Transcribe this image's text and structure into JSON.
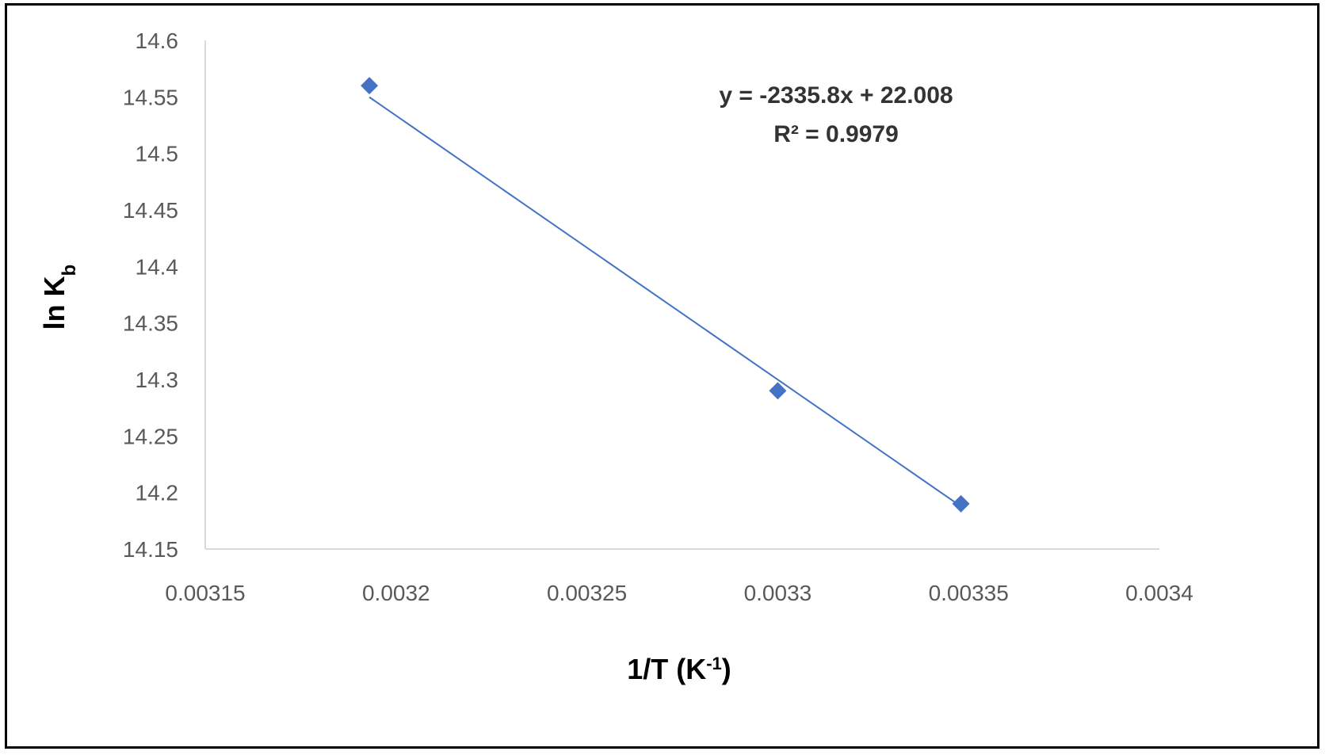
{
  "chart_data": {
    "type": "scatter",
    "x": [
      0.003193,
      0.0033,
      0.003348
    ],
    "y": [
      14.56,
      14.29,
      14.19
    ],
    "xlim": [
      0.00315,
      0.0034
    ],
    "ylim": [
      14.15,
      14.6
    ],
    "x_ticks": [
      0.00315,
      0.0032,
      0.00325,
      0.0033,
      0.00335,
      0.0034
    ],
    "x_tick_labels": [
      "0.00315",
      "0.0032",
      "0.00325",
      "0.0033",
      "0.00335",
      "0.0034"
    ],
    "y_ticks": [
      14.15,
      14.2,
      14.25,
      14.3,
      14.35,
      14.4,
      14.45,
      14.5,
      14.55,
      14.6
    ],
    "y_tick_labels": [
      "14.15",
      "14.2",
      "14.25",
      "14.3",
      "14.35",
      "14.4",
      "14.45",
      "14.5",
      "14.55",
      "14.6"
    ],
    "xlabel": {
      "base": "1/T (K",
      "sup": "-1",
      "close": ")"
    },
    "ylabel": {
      "base": "ln K",
      "sub": "b"
    },
    "trendline": {
      "slope": -2335.8,
      "intercept": 22.008,
      "equation": "y = -2335.8x + 22.008",
      "r2_label": "R² = 0.9979",
      "color": "#4472c4"
    },
    "marker_color": "#4472c4",
    "axis_color": "#d9d9d9",
    "grid": false,
    "legend": "none"
  }
}
